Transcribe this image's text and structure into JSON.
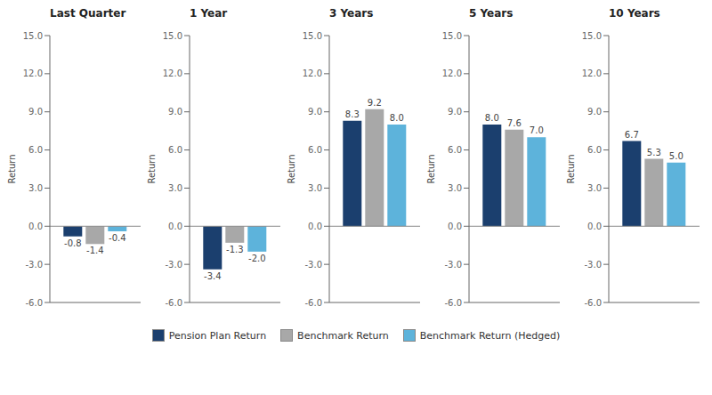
{
  "chart_data": [
    {
      "type": "bar",
      "title": "Last Quarter",
      "y_label": "Return",
      "categories": [
        null
      ],
      "series": [
        {
          "name": "Pension Plan Return",
          "color": "#1b3f6e",
          "values": [
            -0.8
          ],
          "value_labels": [
            "-0.8"
          ]
        },
        {
          "name": "Benchmark Return",
          "color": "#a8a8a8",
          "values": [
            -1.4
          ],
          "value_labels": [
            "-1.4"
          ]
        },
        {
          "name": "Benchmark Return (Hedged)",
          "color": "#5db3db",
          "values": [
            -0.4
          ],
          "value_labels": [
            "-0.4"
          ]
        }
      ],
      "ylim": [
        -6.0,
        15.0
      ],
      "yticks": [
        {
          "value": -6.0,
          "label": "-6.0"
        },
        {
          "value": -3.0,
          "label": "-3.0"
        },
        {
          "value": 0.0,
          "label": "0.0"
        },
        {
          "value": 3.0,
          "label": "3.0"
        },
        {
          "value": 6.0,
          "label": "6.0"
        },
        {
          "value": 9.0,
          "label": "9.0"
        },
        {
          "value": 12.0,
          "label": "12.0"
        },
        {
          "value": 15.0,
          "label": "15.0"
        }
      ],
      "data_labels": true,
      "tick_labels": "y",
      "grid": false,
      "legend": "bottom"
    },
    {
      "type": "bar",
      "title": "1 Year",
      "y_label": "Return",
      "categories": [
        null
      ],
      "series": [
        {
          "name": "Pension Plan Return",
          "color": "#1b3f6e",
          "values": [
            -3.4
          ],
          "value_labels": [
            "-3.4"
          ]
        },
        {
          "name": "Benchmark Return",
          "color": "#a8a8a8",
          "values": [
            -1.3
          ],
          "value_labels": [
            "-1.3"
          ]
        },
        {
          "name": "Benchmark Return (Hedged)",
          "color": "#5db3db",
          "values": [
            -2.0
          ],
          "value_labels": [
            "-2.0"
          ]
        }
      ],
      "ylim": [
        -6.0,
        15.0
      ],
      "yticks": [
        {
          "value": -6.0,
          "label": "-6.0"
        },
        {
          "value": -3.0,
          "label": "-3.0"
        },
        {
          "value": 0.0,
          "label": "0.0"
        },
        {
          "value": 3.0,
          "label": "3.0"
        },
        {
          "value": 6.0,
          "label": "6.0"
        },
        {
          "value": 9.0,
          "label": "9.0"
        },
        {
          "value": 12.0,
          "label": "12.0"
        },
        {
          "value": 15.0,
          "label": "15.0"
        }
      ],
      "data_labels": true,
      "tick_labels": "y",
      "grid": false,
      "legend": "bottom"
    },
    {
      "type": "bar",
      "title": "3 Years",
      "y_label": "Return",
      "categories": [
        null
      ],
      "series": [
        {
          "name": "Pension Plan Return",
          "color": "#1b3f6e",
          "values": [
            8.3
          ],
          "value_labels": [
            "8.3"
          ]
        },
        {
          "name": "Benchmark Return",
          "color": "#a8a8a8",
          "values": [
            9.2
          ],
          "value_labels": [
            "9.2"
          ]
        },
        {
          "name": "Benchmark Return (Hedged)",
          "color": "#5db3db",
          "values": [
            8.0
          ],
          "value_labels": [
            "8.0"
          ]
        }
      ],
      "ylim": [
        -6.0,
        15.0
      ],
      "yticks": [
        {
          "value": -6.0,
          "label": "-6.0"
        },
        {
          "value": -3.0,
          "label": "-3.0"
        },
        {
          "value": 0.0,
          "label": "0.0"
        },
        {
          "value": 3.0,
          "label": "3.0"
        },
        {
          "value": 6.0,
          "label": "6.0"
        },
        {
          "value": 9.0,
          "label": "9.0"
        },
        {
          "value": 12.0,
          "label": "12.0"
        },
        {
          "value": 15.0,
          "label": "15.0"
        }
      ],
      "data_labels": true,
      "tick_labels": "y",
      "grid": false,
      "legend": "bottom"
    },
    {
      "type": "bar",
      "title": "5 Years",
      "y_label": "Return",
      "categories": [
        null
      ],
      "series": [
        {
          "name": "Pension Plan Return",
          "color": "#1b3f6e",
          "values": [
            8.0
          ],
          "value_labels": [
            "8.0"
          ]
        },
        {
          "name": "Benchmark Return",
          "color": "#a8a8a8",
          "values": [
            7.6
          ],
          "value_labels": [
            "7.6"
          ]
        },
        {
          "name": "Benchmark Return (Hedged)",
          "color": "#5db3db",
          "values": [
            7.0
          ],
          "value_labels": [
            "7.0"
          ]
        }
      ],
      "ylim": [
        -6.0,
        15.0
      ],
      "yticks": [
        {
          "value": -6.0,
          "label": "-6.0"
        },
        {
          "value": -3.0,
          "label": "-3.0"
        },
        {
          "value": 0.0,
          "label": "0.0"
        },
        {
          "value": 3.0,
          "label": "3.0"
        },
        {
          "value": 6.0,
          "label": "6.0"
        },
        {
          "value": 9.0,
          "label": "9.0"
        },
        {
          "value": 12.0,
          "label": "12.0"
        },
        {
          "value": 15.0,
          "label": "15.0"
        }
      ],
      "data_labels": true,
      "tick_labels": "y",
      "grid": false,
      "legend": "bottom"
    },
    {
      "type": "bar",
      "title": "10 Years",
      "y_label": "Return",
      "categories": [
        null
      ],
      "series": [
        {
          "name": "Pension Plan Return",
          "color": "#1b3f6e",
          "values": [
            6.7
          ],
          "value_labels": [
            "6.7"
          ]
        },
        {
          "name": "Benchmark Return",
          "color": "#a8a8a8",
          "values": [
            5.3
          ],
          "value_labels": [
            "5.3"
          ]
        },
        {
          "name": "Benchmark Return (Hedged)",
          "color": "#5db3db",
          "values": [
            5.0
          ],
          "value_labels": [
            "5.0"
          ]
        }
      ],
      "ylim": [
        -6.0,
        15.0
      ],
      "yticks": [
        {
          "value": -6.0,
          "label": "-6.0"
        },
        {
          "value": -3.0,
          "label": "-3.0"
        },
        {
          "value": 0.0,
          "label": "0.0"
        },
        {
          "value": 3.0,
          "label": "3.0"
        },
        {
          "value": 6.0,
          "label": "6.0"
        },
        {
          "value": 9.0,
          "label": "9.0"
        },
        {
          "value": 12.0,
          "label": "12.0"
        },
        {
          "value": 15.0,
          "label": "15.0"
        }
      ],
      "data_labels": true,
      "tick_labels": "y",
      "grid": false,
      "legend": "bottom"
    }
  ]
}
